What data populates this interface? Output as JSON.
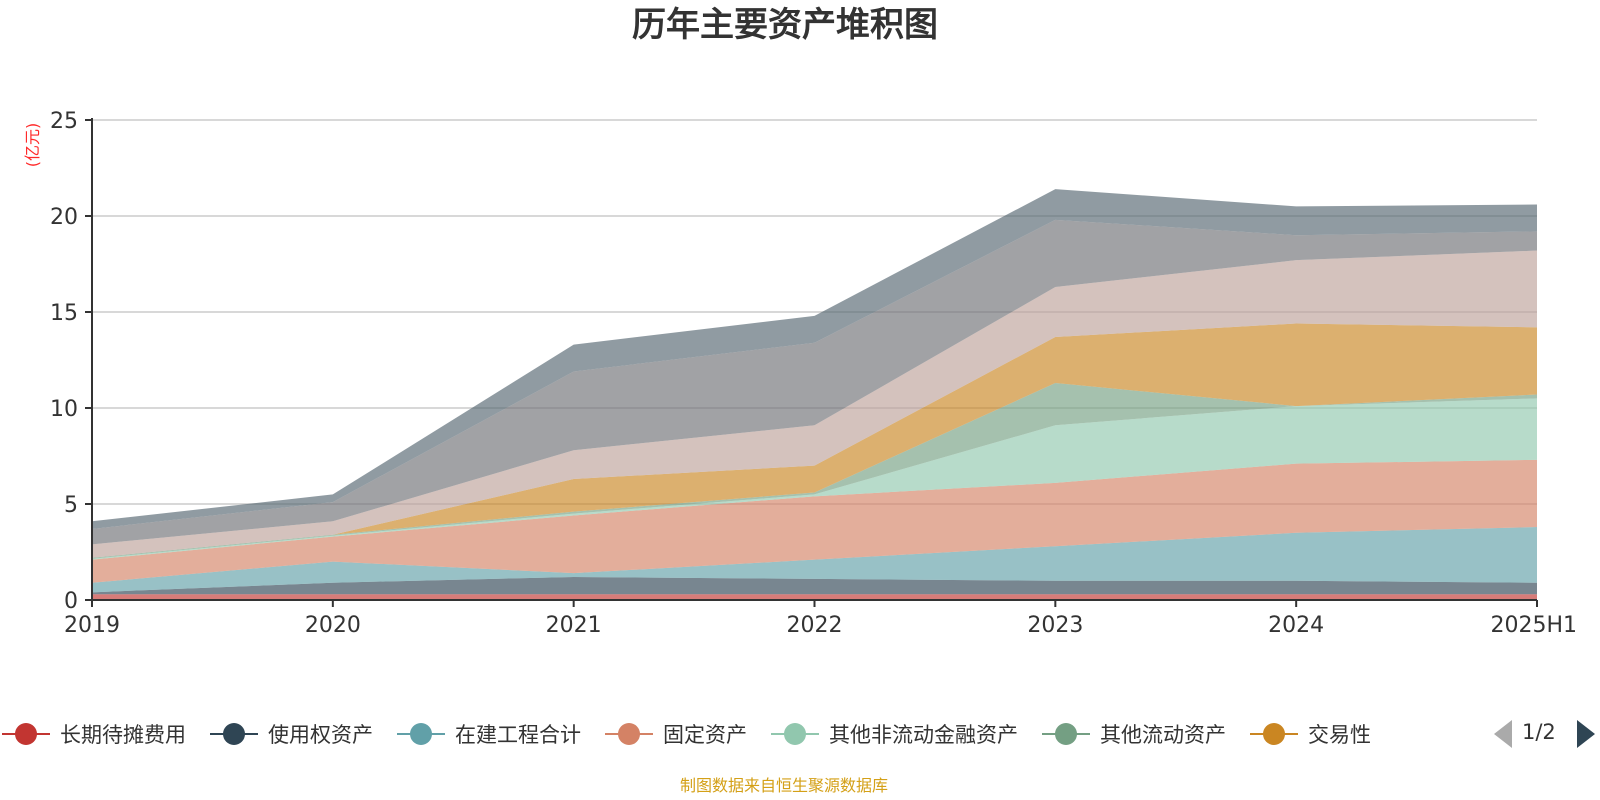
{
  "chart_data": {
    "type": "area",
    "stacked": true,
    "title": "历年主要资产堆积图",
    "unit_label": "(亿元)",
    "x": [
      "2019",
      "2020",
      "2021",
      "2022",
      "2023",
      "2024",
      "2025H1"
    ],
    "ylim": [
      0,
      25
    ],
    "yticks": [
      0,
      5,
      10,
      15,
      20,
      25
    ],
    "grid": true,
    "legend_position": "bottom",
    "series": [
      {
        "name": "长期待摊费用",
        "color": "#c23531",
        "values": [
          0.3,
          0.3,
          0.3,
          0.3,
          0.3,
          0.3,
          0.3
        ]
      },
      {
        "name": "使用权资产",
        "color": "#2f4554",
        "values": [
          0.1,
          0.6,
          0.9,
          0.8,
          0.7,
          0.7,
          0.6
        ]
      },
      {
        "name": "在建工程合计",
        "color": "#61a0a8",
        "values": [
          0.5,
          1.1,
          0.2,
          1.0,
          1.8,
          2.5,
          2.9
        ]
      },
      {
        "name": "固定资产",
        "color": "#d48265",
        "values": [
          1.2,
          1.3,
          3.0,
          3.3,
          3.3,
          3.6,
          3.5
        ]
      },
      {
        "name": "其他非流动金融资产",
        "color": "#91c7ae",
        "values": [
          0.05,
          0.05,
          0.1,
          0.1,
          3.0,
          3.0,
          3.2
        ]
      },
      {
        "name": "其他流动资产",
        "color": "#749f83",
        "values": [
          0.05,
          0.05,
          0.1,
          0.1,
          2.2,
          0.0,
          0.2
        ]
      },
      {
        "name": "交易性",
        "color": "#ca8622",
        "values": [
          0.0,
          0.0,
          1.7,
          1.4,
          2.4,
          4.3,
          3.5
        ]
      },
      {
        "name": "",
        "color": "#bda29a",
        "values": [
          0.7,
          0.7,
          1.5,
          2.1,
          2.6,
          3.3,
          4.0
        ]
      },
      {
        "name": "",
        "color": "#6e7074",
        "values": [
          0.8,
          1.0,
          4.1,
          4.3,
          3.5,
          1.3,
          1.0
        ]
      },
      {
        "name": "",
        "color": "#546570",
        "values": [
          0.4,
          0.4,
          1.4,
          1.4,
          1.6,
          1.5,
          1.4
        ]
      }
    ]
  },
  "legend": {
    "page_label": "1/2"
  },
  "footer": {
    "source_text": "制图数据来自恒生聚源数据库"
  }
}
